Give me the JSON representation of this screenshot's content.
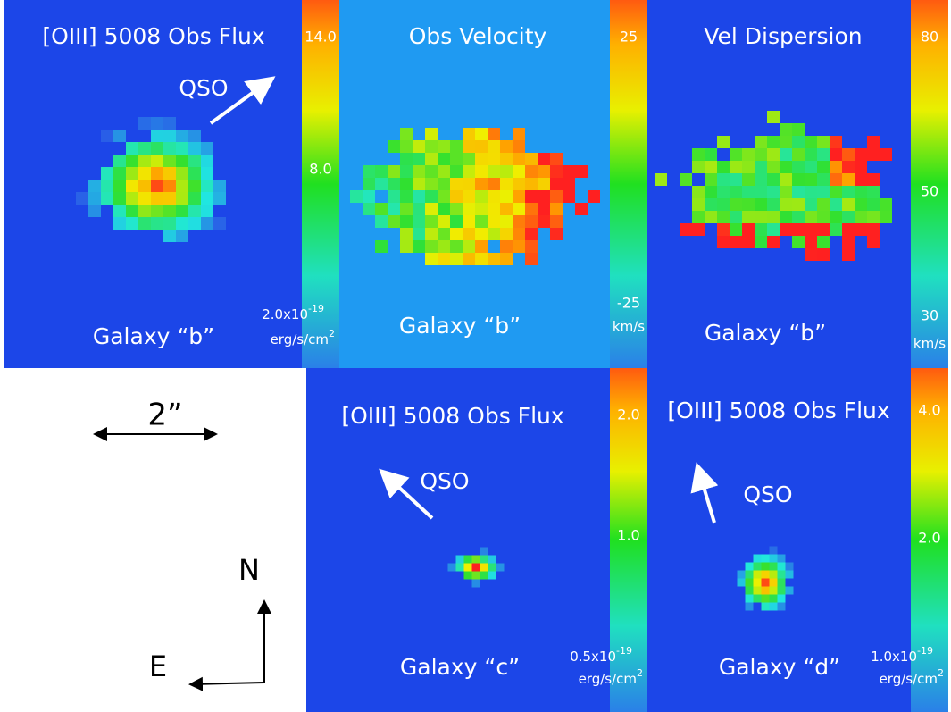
{
  "panels": [
    {
      "title": "[OIII] 5008 Obs Flux",
      "qso": "QSO",
      "galaxy": "Galaxy “b”",
      "colorbar": {
        "top": "14.0",
        "mid": "8.0",
        "bottom": "2.0x10",
        "exp": "-19",
        "unit": "erg/s/cm",
        "unit_exp": "2"
      }
    },
    {
      "title": "Obs Velocity",
      "galaxy": "Galaxy “b”",
      "colorbar": {
        "top": "25",
        "bottom": "-25",
        "unit": "km/s"
      }
    },
    {
      "title": "Vel Dispersion",
      "galaxy": "Galaxy “b”",
      "colorbar": {
        "top": "80",
        "mid": "50",
        "bottom": "30",
        "unit": "km/s"
      }
    },
    {
      "title": "[OIII] 5008 Obs Flux",
      "qso": "QSO",
      "galaxy": "Galaxy “c”",
      "colorbar": {
        "top": "2.0",
        "mid": "1.0",
        "bottom": "0.5x10",
        "exp": "-19",
        "unit": "erg/s/cm",
        "unit_exp": "2"
      }
    },
    {
      "title": "[OIII] 5008 Obs Flux",
      "qso": "QSO",
      "galaxy": "Galaxy “d”",
      "colorbar": {
        "top": "4.0",
        "mid": "2.0",
        "bottom": "1.0x10",
        "exp": "-19",
        "unit": "erg/s/cm",
        "unit_exp": "2"
      }
    }
  ],
  "scale": {
    "label": "2”"
  },
  "compass": {
    "north": "N",
    "east": "E"
  }
}
